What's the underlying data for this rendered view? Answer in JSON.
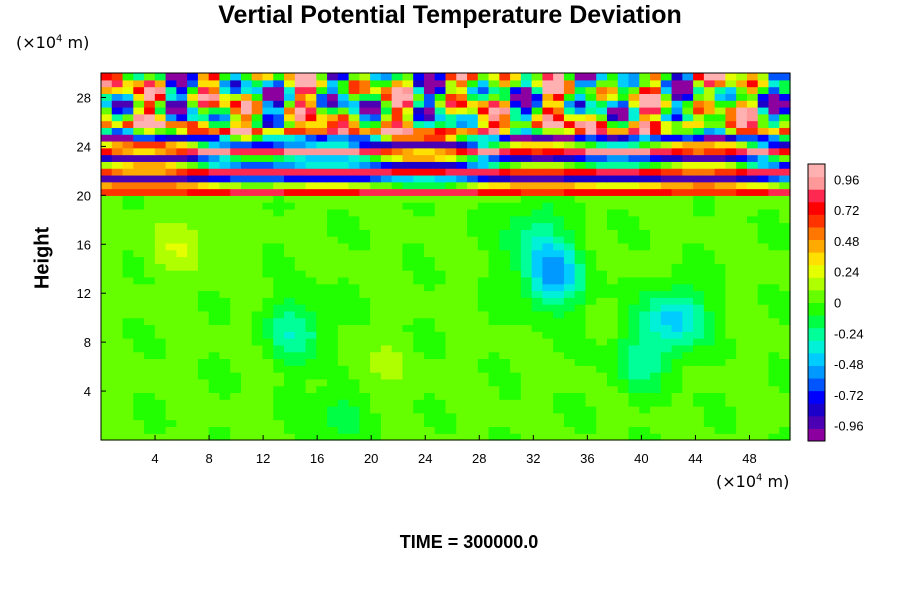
{
  "chart_data": {
    "type": "heatmap",
    "title": "Vertial Potential Temperature Deviation",
    "ylabel": "Height",
    "y_unit": {
      "prefix": "(×10",
      "exp": "4",
      "suffix": " m)"
    },
    "x_unit": {
      "prefix": "(×10",
      "exp": "4",
      "suffix": " m)"
    },
    "xlim": [
      0,
      51
    ],
    "ylim": [
      0,
      30
    ],
    "x_ticks": [
      4,
      8,
      12,
      16,
      20,
      24,
      28,
      32,
      36,
      40,
      44,
      48
    ],
    "y_ticks": [
      4,
      8,
      12,
      16,
      20,
      24,
      28
    ],
    "colorbar": {
      "range": [
        -1.08,
        1.08
      ],
      "tick_values": [
        0.96,
        0.72,
        0.48,
        0.24,
        0,
        -0.24,
        -0.48,
        -0.72,
        -0.96
      ],
      "tick_labels": [
        "0.96",
        "0.72",
        "0.48",
        "0.24",
        "0",
        "-0.24",
        "-0.48",
        "-0.72",
        "-0.96"
      ],
      "colors": [
        "#8c00a0",
        "#4c00b4",
        "#1a00c8",
        "#0000ff",
        "#0055ff",
        "#0099ff",
        "#00ccff",
        "#00f0d8",
        "#00ff99",
        "#00ff44",
        "#22ff00",
        "#66ff00",
        "#b0ff00",
        "#e6ff00",
        "#ffe000",
        "#ffaa00",
        "#ff7700",
        "#ff3300",
        "#ff0000",
        "#ff2850",
        "#ff9999",
        "#ffb0b0"
      ]
    },
    "field": {
      "background_value": 0.02,
      "stratified_layer_base": 19.5,
      "stable_bands": [
        {
          "y": 20.5,
          "amplitude": 1.0
        },
        {
          "y": 21.3,
          "amplitude": -1.0
        },
        {
          "y": 22.0,
          "amplitude": 1.0
        },
        {
          "y": 22.8,
          "amplitude": -1.0
        },
        {
          "y": 23.6,
          "amplitude": 1.0
        },
        {
          "y": 24.5,
          "amplitude": -1.0
        },
        {
          "y": 25.4,
          "amplitude": 1.0
        }
      ],
      "anomalies": [
        {
          "x": 33.5,
          "y": 13.5,
          "value": -0.55
        },
        {
          "x": 32.0,
          "y": 17.0,
          "value": -0.25
        },
        {
          "x": 14.5,
          "y": 9.0,
          "value": -0.3
        },
        {
          "x": 42.5,
          "y": 10.0,
          "value": -0.45
        },
        {
          "x": 40.0,
          "y": 6.5,
          "value": -0.25
        },
        {
          "x": 18.0,
          "y": 2.5,
          "value": -0.2
        },
        {
          "x": 6.0,
          "y": 16.0,
          "value": 0.15
        },
        {
          "x": 20.0,
          "y": 5.0,
          "value": 0.12
        }
      ]
    }
  },
  "footer": {
    "time_label": "TIME = 300000.0"
  }
}
